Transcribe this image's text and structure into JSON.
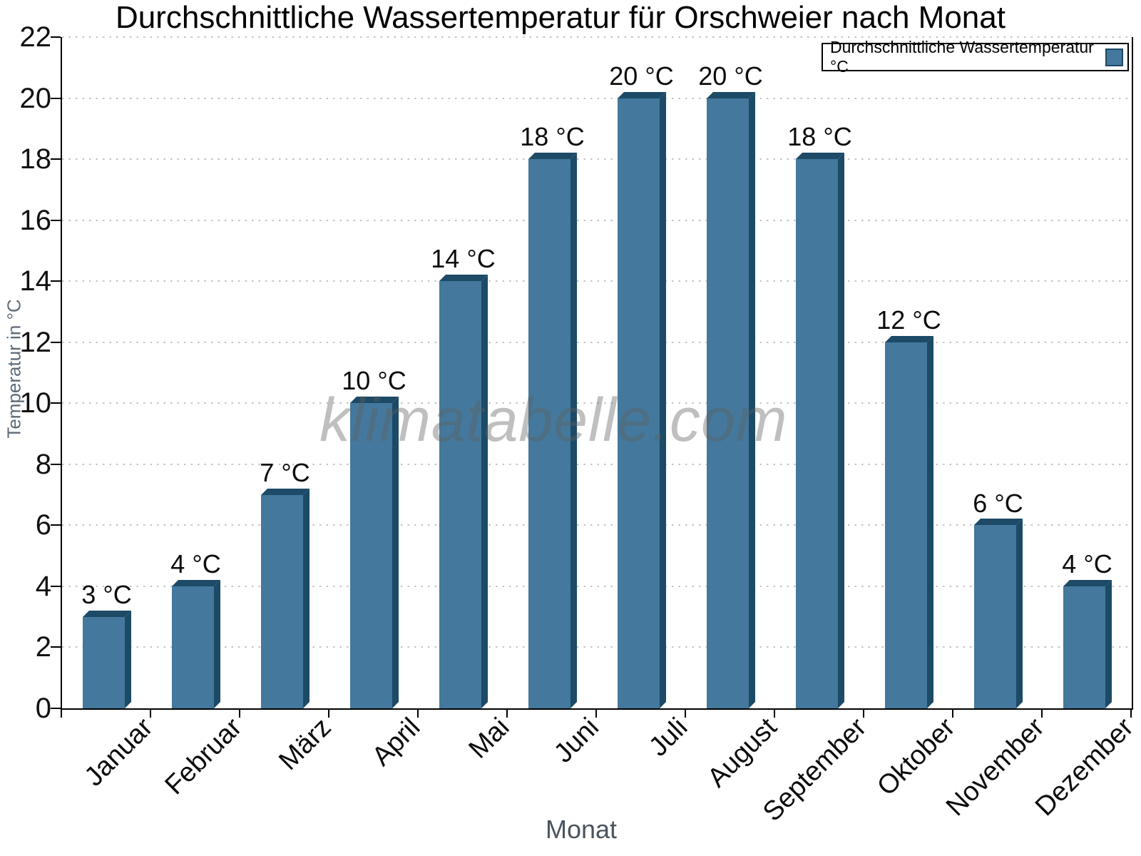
{
  "watermark": "klimatabelle.com",
  "chart_data": {
    "type": "bar",
    "title": "Durchschnittliche Wassertemperatur für Orschweier nach Monat",
    "xlabel": "Monat",
    "ylabel": "Temperatur in °C",
    "categories": [
      "Januar",
      "Februar",
      "März",
      "April",
      "Mai",
      "Juni",
      "Juli",
      "August",
      "September",
      "Oktober",
      "November",
      "Dezember"
    ],
    "values": [
      3,
      4,
      7,
      10,
      14,
      18,
      20,
      20,
      18,
      12,
      6,
      4
    ],
    "value_labels": [
      "3 °C",
      "4 °C",
      "7 °C",
      "10 °C",
      "14 °C",
      "18 °C",
      "20 °C",
      "20 °C",
      "18 °C",
      "12 °C",
      "6 °C",
      "4 °C"
    ],
    "unit": "°C",
    "ylim": [
      0,
      22
    ],
    "ytick_step": 2,
    "yticks": [
      0,
      2,
      4,
      6,
      8,
      10,
      12,
      14,
      16,
      18,
      20,
      22
    ],
    "grid": "horizontal-dotted",
    "legend": {
      "label": "Durchschnittliche Wassertemperatur °C",
      "position": "top-right"
    },
    "bar_face_color": "#44789c",
    "bar_edge_color": "#1c4a67"
  }
}
